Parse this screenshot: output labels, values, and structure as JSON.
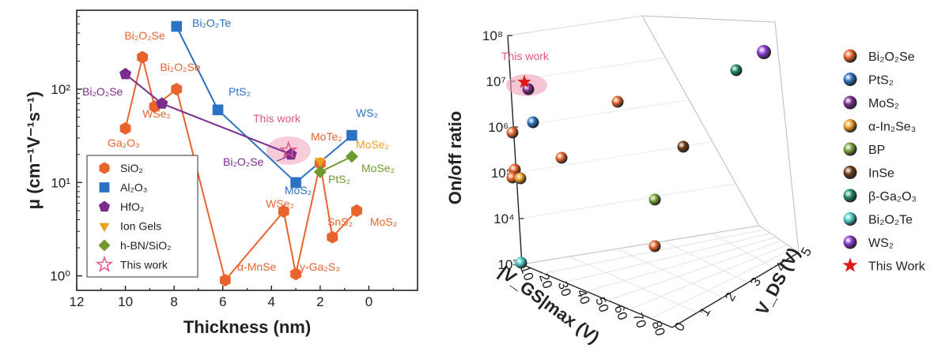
{
  "chart_data": [
    {
      "type": "scatter",
      "xlabel": "Thickness (nm)",
      "ylabel": "μ (cm⁻¹V⁻¹s⁻¹)",
      "xlim": [
        12,
        -2
      ],
      "x_reversed": true,
      "ylim": [
        0.7,
        700
      ],
      "yscale": "log",
      "xticks": [
        "12",
        "10",
        "8",
        "6",
        "4",
        "2",
        "0"
      ],
      "yticks": [
        "10⁰",
        "10¹",
        "10²"
      ],
      "legend_position": "bottom-left",
      "series": [
        {
          "name": "SiO₂",
          "color": "#e8642c",
          "marker": "hexagon",
          "connected": true,
          "x": [
            10,
            9.3,
            8.8,
            7.9,
            5.9,
            3.5,
            3.0,
            2.0,
            1.5,
            0.5
          ],
          "y": [
            38,
            220,
            65,
            100,
            0.9,
            4.9,
            1.05,
            16,
            2.6,
            5.0
          ]
        },
        {
          "name": "Al₂O₃",
          "color": "#2b72c2",
          "marker": "square",
          "connected": true,
          "x": [
            7.9,
            6.2,
            3.0,
            0.7
          ],
          "y": [
            470,
            60,
            10,
            32
          ]
        },
        {
          "name": "HfO₂",
          "color": "#7b2d8e",
          "marker": "pentagon",
          "connected": true,
          "x": [
            10,
            8.5,
            3.2
          ],
          "y": [
            145,
            70,
            20
          ]
        },
        {
          "name": "Ion Gels",
          "color": "#e8a21c",
          "marker": "triangle-down",
          "x": [
            2.0
          ],
          "y": [
            17
          ]
        },
        {
          "name": "h-BN/SiO₂",
          "color": "#6f9a2f",
          "marker": "diamond",
          "connected": true,
          "x": [
            2.0,
            0.7
          ],
          "y": [
            13,
            19
          ]
        },
        {
          "name": "This work",
          "color": "#e05586",
          "marker": "star-open",
          "x": [
            3.3
          ],
          "y": [
            22
          ]
        }
      ],
      "annotations": [
        {
          "text": "Bi₂O₂Te",
          "color": "#2b72c2"
        },
        {
          "text": "Bi₂O₂Se",
          "color": "#e8642c"
        },
        {
          "text": "Bi₂O₂Se",
          "color": "#e8642c"
        },
        {
          "text": "Bi₂O₂Se",
          "color": "#7b2d8e"
        },
        {
          "text": "Bi₂O₂Se",
          "color": "#7b2d8e"
        },
        {
          "text": "WSe₂",
          "color": "#e8642c"
        },
        {
          "text": "Ga₂O₃",
          "color": "#e8642c"
        },
        {
          "text": "PtS₂",
          "color": "#2b72c2"
        },
        {
          "text": "This work",
          "color": "#e05586"
        },
        {
          "text": "MoTe₂",
          "color": "#e8642c"
        },
        {
          "text": "WS₂",
          "color": "#2b72c2"
        },
        {
          "text": "MoSe₂",
          "color": "#e8a21c"
        },
        {
          "text": "MoSe₂",
          "color": "#6f9a2f"
        },
        {
          "text": "PtS₂",
          "color": "#6f9a2f"
        },
        {
          "text": "MoS₂",
          "color": "#2b72c2"
        },
        {
          "text": "WSe₂",
          "color": "#e8642c"
        },
        {
          "text": "SnS₂",
          "color": "#e8642c"
        },
        {
          "text": "MoS₂",
          "color": "#e8642c"
        },
        {
          "text": "α-MnSe",
          "color": "#e8642c"
        },
        {
          "text": "γ-Ga₂S₃",
          "color": "#e8642c"
        }
      ]
    },
    {
      "type": "scatter3d",
      "zlabel": "On/off ratio",
      "xlabel": "|V_GS|max (V)",
      "ylabel": "V_DS (V)",
      "zscale": "log",
      "zticks": [
        "10³",
        "10⁴",
        "10⁵",
        "10⁶",
        "10⁷",
        "10⁸"
      ],
      "xticks": [
        "10",
        "20",
        "30",
        "40",
        "50",
        "60",
        "70",
        "80"
      ],
      "yticks": [
        "0",
        "1",
        "2",
        "3",
        "4",
        "5"
      ],
      "legend_position": "right",
      "series": [
        {
          "name": "Bi₂O₂Se",
          "color": "#e8642c"
        },
        {
          "name": "PtS₂",
          "color": "#2b72c2"
        },
        {
          "name": "MoS₂",
          "color": "#7b2d8e"
        },
        {
          "name": "α-In₂Se₃",
          "color": "#f0a024"
        },
        {
          "name": "BP",
          "color": "#7aa23a"
        },
        {
          "name": "InSe",
          "color": "#6e3a12"
        },
        {
          "name": "β-Ga₂O₃",
          "color": "#1e8a6a"
        },
        {
          "name": "Bi₂O₂Te",
          "color": "#4cc8c8"
        },
        {
          "name": "WS₂",
          "color": "#8a3ad0"
        },
        {
          "name": "This Work",
          "color": "#e01818"
        }
      ],
      "annotation": "This work"
    }
  ]
}
